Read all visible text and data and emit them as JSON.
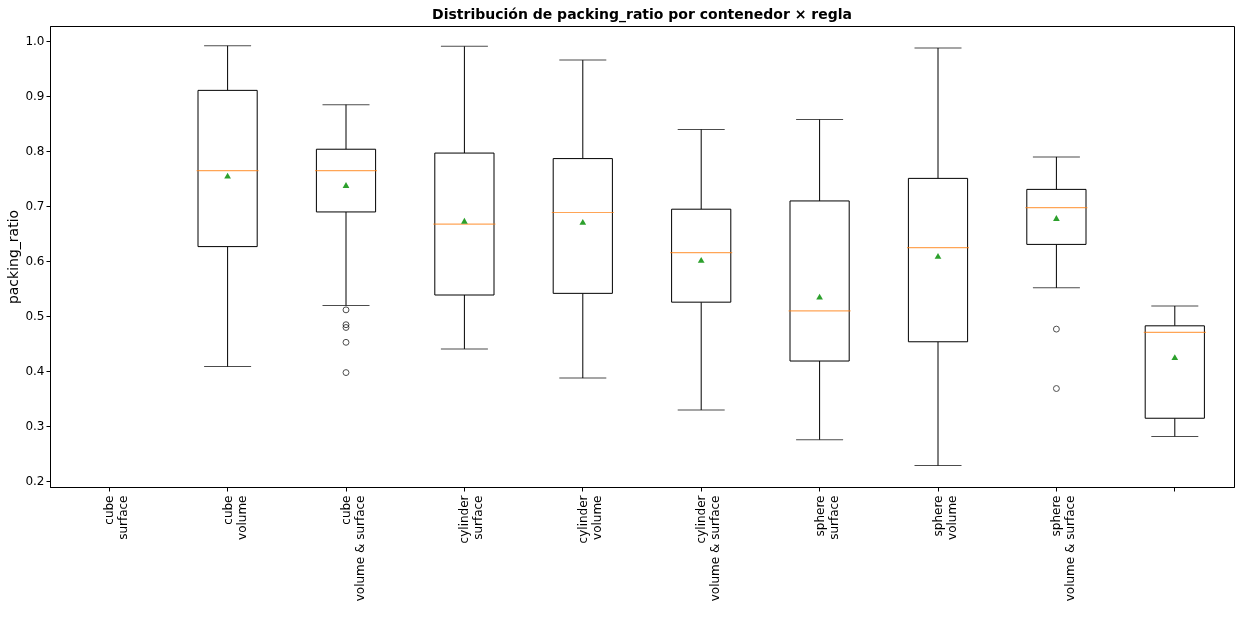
{
  "chart_data": {
    "type": "box",
    "title": "Distribución de packing_ratio por contenedor × regla",
    "ylabel": "packing_ratio",
    "categories": [
      "cube\nsurface",
      "cube\nvolume",
      "cube\nvolume & surface",
      "cylinder\nsurface",
      "cylinder\nvolume",
      "cylinder\nvolume & surface",
      "sphere\nsurface",
      "sphere\nvolume",
      "sphere\nvolume & surface",
      null
    ],
    "boxes": [
      null,
      {
        "low": 0.408,
        "q1": 0.626,
        "median": 0.764,
        "q3": 0.91,
        "high": 0.991,
        "mean": 0.755
      },
      {
        "low": 0.519,
        "q1": 0.689,
        "median": 0.764,
        "q3": 0.803,
        "high": 0.884,
        "mean": 0.738,
        "outliers": [
          0.511,
          0.484,
          0.479,
          0.452,
          0.397
        ]
      },
      {
        "low": 0.44,
        "q1": 0.538,
        "median": 0.667,
        "q3": 0.796,
        "high": 0.99,
        "mean": 0.673
      },
      {
        "low": 0.387,
        "q1": 0.541,
        "median": 0.688,
        "q3": 0.786,
        "high": 0.965,
        "mean": 0.671
      },
      {
        "low": 0.329,
        "q1": 0.525,
        "median": 0.615,
        "q3": 0.694,
        "high": 0.839,
        "mean": 0.602
      },
      {
        "low": 0.275,
        "q1": 0.418,
        "median": 0.509,
        "q3": 0.709,
        "high": 0.857,
        "mean": 0.535
      },
      {
        "low": 0.228,
        "q1": 0.453,
        "median": 0.624,
        "q3": 0.75,
        "high": 0.987,
        "mean": 0.609
      },
      {
        "low": 0.551,
        "q1": 0.63,
        "median": 0.697,
        "q3": 0.73,
        "high": 0.789,
        "mean": 0.678,
        "outliers": [
          0.476,
          0.368
        ]
      },
      {
        "low": 0.281,
        "q1": 0.314,
        "median": 0.47,
        "q3": 0.482,
        "high": 0.518,
        "mean": 0.425
      }
    ],
    "ylim": [
      0.189,
      1.027
    ],
    "yticks": [
      0.2,
      0.3,
      0.4,
      0.5,
      0.6,
      0.7,
      0.8,
      0.9,
      {
        "value": 1,
        "label": "1.0"
      }
    ],
    "grid": false
  }
}
